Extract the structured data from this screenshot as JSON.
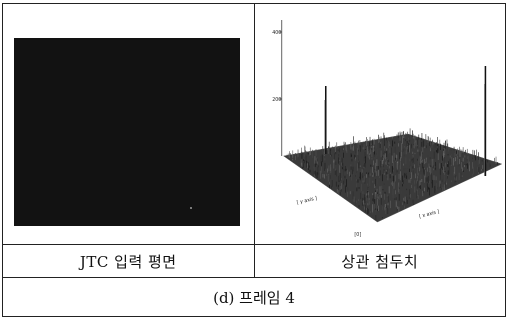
{
  "panels": {
    "left_label": "JTC 입력 평면",
    "right_label": "상관 첨두치"
  },
  "caption": "(d) 프레임 4",
  "plot": {
    "z_ticks": [
      "400",
      "200"
    ],
    "x_axis_label": "[ x axis ]",
    "y_axis_label": "[ y axis ]",
    "origin_label": "[0]"
  }
}
